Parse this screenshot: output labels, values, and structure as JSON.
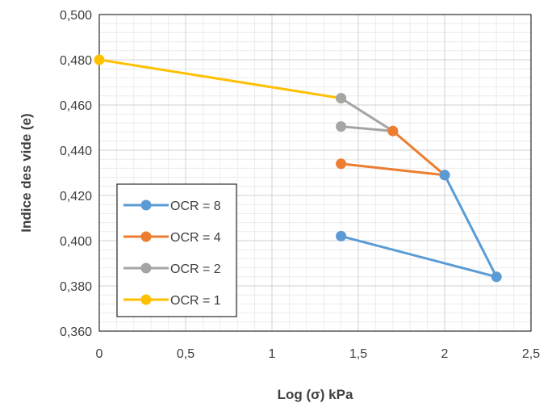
{
  "chart_data": {
    "type": "line",
    "xlabel": "Log (σ) kPa",
    "ylabel": "Indice des vide (e)",
    "xlim": [
      0,
      2.5
    ],
    "ylim": [
      0.36,
      0.5
    ],
    "x_ticks": [
      "0",
      "0,5",
      "1",
      "1,5",
      "2",
      "2,5"
    ],
    "y_ticks": [
      "0,360",
      "0,380",
      "0,400",
      "0,420",
      "0,440",
      "0,460",
      "0,480",
      "0,500"
    ],
    "grid": "major and minor",
    "legend_position": "bottom-left",
    "series": [
      {
        "name": "OCR = 8",
        "color": "#5B9BD5",
        "points": [
          [
            1.4,
            0.402
          ],
          [
            2.3,
            0.384
          ],
          [
            2.0,
            0.429
          ]
        ]
      },
      {
        "name": "OCR = 4",
        "color": "#ED7D31",
        "points": [
          [
            1.4,
            0.434
          ],
          [
            2.0,
            0.429
          ],
          [
            1.7,
            0.4485
          ]
        ]
      },
      {
        "name": "OCR = 2",
        "color": "#A5A5A5",
        "points": [
          [
            1.4,
            0.4505
          ],
          [
            1.7,
            0.4485
          ],
          [
            1.4,
            0.463
          ]
        ]
      },
      {
        "name": "OCR = 1",
        "color": "#FFC000",
        "points": [
          [
            0.0,
            0.48
          ],
          [
            1.4,
            0.463
          ]
        ]
      }
    ]
  }
}
